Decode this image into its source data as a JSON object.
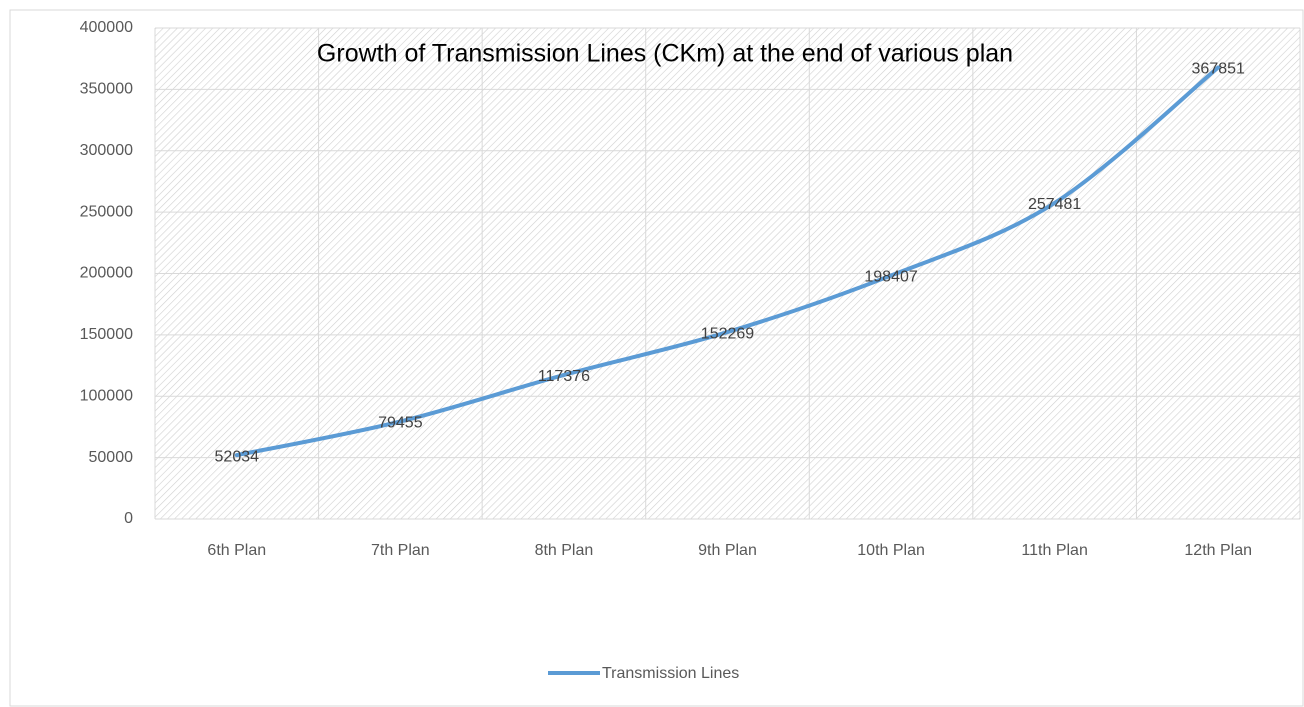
{
  "chart_data": {
    "type": "line",
    "title": "Growth of Transmission Lines (CKm) at the end of various plan",
    "categories": [
      "6th Plan",
      "7th Plan",
      "8th Plan",
      "9th Plan",
      "10th Plan",
      "11th Plan",
      "12th Plan"
    ],
    "series": [
      {
        "name": "Transmission Lines",
        "color": "#5b9bd5",
        "values": [
          52034,
          79455,
          117376,
          152269,
          198407,
          257481,
          367851
        ]
      }
    ],
    "ylim": [
      0,
      400000
    ],
    "yticks": [
      0,
      50000,
      100000,
      150000,
      200000,
      250000,
      300000,
      350000,
      400000
    ],
    "grid": true,
    "legend": "bottom",
    "data_labels": true
  }
}
